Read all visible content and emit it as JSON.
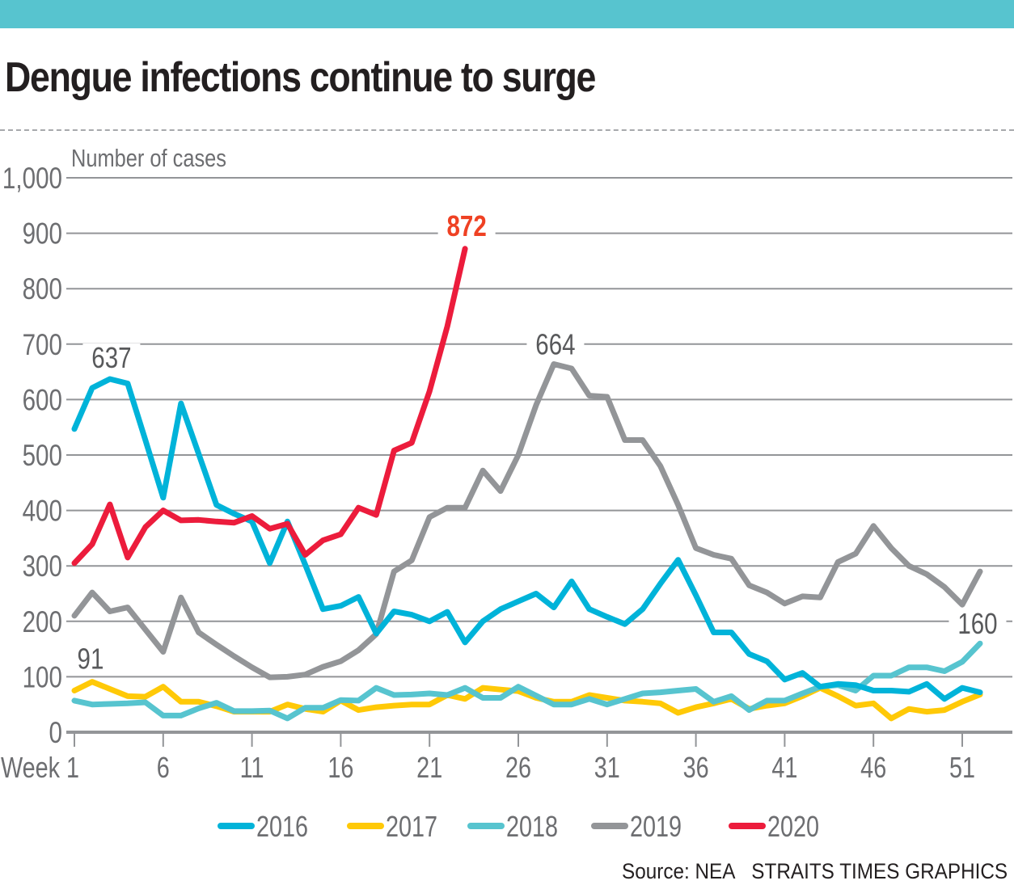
{
  "header": {
    "title": "Dengue infections continue to surge"
  },
  "footer": {
    "source": "Source: NEA",
    "credit": "STRAITS TIMES GRAPHICS"
  },
  "chart_data": {
    "type": "line",
    "title": "Dengue infections continue to surge",
    "ylabel": "Number of cases",
    "xlabel": "Week",
    "ylim": [
      0,
      1000
    ],
    "xlim": [
      1,
      52
    ],
    "grid": true,
    "legend_position": "bottom",
    "y_ticks": [
      0,
      100,
      200,
      300,
      400,
      500,
      600,
      700,
      800,
      900,
      1000
    ],
    "y_tick_labels": [
      "0",
      "100",
      "200",
      "300",
      "400",
      "500",
      "600",
      "700",
      "800",
      "900",
      "1,000"
    ],
    "x_ticks": [
      1,
      6,
      11,
      16,
      21,
      26,
      31,
      36,
      41,
      46,
      51
    ],
    "x_tick_labels": [
      "Week 1",
      "6",
      "11",
      "16",
      "21",
      "26",
      "31",
      "36",
      "41",
      "46",
      "51"
    ],
    "series": [
      {
        "name": "2016",
        "color": "#00b3d9",
        "values": [
          547,
          621,
          637,
          629,
          527,
          423,
          593,
          502,
          410,
          394,
          380,
          305,
          380,
          302,
          222,
          228,
          244,
          178,
          218,
          212,
          200,
          217,
          162,
          200,
          222,
          236,
          250,
          225,
          272,
          222,
          208,
          195,
          222,
          268,
          311,
          247,
          180,
          180,
          141,
          128,
          95,
          107,
          82,
          87,
          85,
          75,
          75,
          73,
          87,
          60,
          80,
          72
        ]
      },
      {
        "name": "2017",
        "color": "#ffc907",
        "values": [
          75,
          91,
          78,
          65,
          64,
          82,
          55,
          55,
          47,
          37,
          37,
          37,
          50,
          42,
          37,
          57,
          40,
          45,
          48,
          50,
          50,
          67,
          60,
          80,
          77,
          74,
          62,
          55,
          55,
          67,
          62,
          57,
          55,
          52,
          35,
          45,
          52,
          60,
          42,
          48,
          52,
          65,
          80,
          65,
          48,
          52,
          25,
          42,
          37,
          40,
          55,
          68
        ]
      },
      {
        "name": "2018",
        "color": "#57c4cf",
        "values": [
          57,
          50,
          51,
          52,
          54,
          30,
          30,
          43,
          53,
          38,
          38,
          39,
          25,
          44,
          44,
          58,
          57,
          80,
          67,
          68,
          70,
          67,
          80,
          62,
          62,
          82,
          66,
          50,
          50,
          60,
          50,
          60,
          70,
          72,
          75,
          78,
          55,
          65,
          40,
          57,
          57,
          70,
          82,
          85,
          75,
          102,
          102,
          117,
          117,
          110,
          127,
          160
        ]
      },
      {
        "name": "2019",
        "color": "#939598",
        "values": [
          210,
          252,
          218,
          225,
          185,
          145,
          243,
          180,
          158,
          137,
          117,
          99,
          100,
          104,
          118,
          128,
          148,
          177,
          290,
          310,
          388,
          405,
          405,
          472,
          435,
          500,
          590,
          664,
          656,
          607,
          605,
          527,
          527,
          480,
          410,
          332,
          320,
          313,
          265,
          252,
          232,
          245,
          243,
          307,
          322,
          372,
          332,
          300,
          285,
          262,
          230,
          290
        ]
      },
      {
        "name": "2020",
        "color": "#ec1c3c",
        "values": [
          305,
          339,
          411,
          315,
          370,
          400,
          382,
          383,
          380,
          378,
          390,
          367,
          376,
          320,
          346,
          357,
          405,
          392,
          508,
          522,
          615,
          732,
          872
        ]
      }
    ],
    "annotations": [
      {
        "text": "637",
        "series": "2016",
        "week": 3,
        "value": 637,
        "color": "#58595b"
      },
      {
        "text": "91",
        "series": "2017",
        "week": 2,
        "value": 91,
        "color": "#58595b"
      },
      {
        "text": "664",
        "series": "2019",
        "week": 28,
        "value": 664,
        "color": "#58595b"
      },
      {
        "text": "160",
        "series": "2018",
        "week": 52,
        "value": 160,
        "color": "#58595b"
      },
      {
        "text": "872",
        "series": "2020",
        "week": 23,
        "value": 872,
        "color": "#ef4123",
        "bold": true
      }
    ]
  }
}
